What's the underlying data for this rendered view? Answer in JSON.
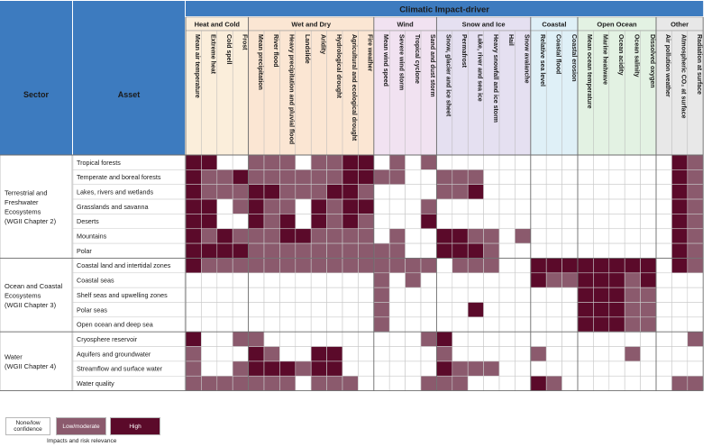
{
  "chart_data": {
    "type": "heatmap",
    "title": "Climatic Impact-driver",
    "sector_header": "Sector",
    "asset_header": "Asset",
    "groups": [
      {
        "name": "Heat and Cold",
        "color": "#fbeedb",
        "drivers": [
          "Mean air temperature",
          "Extreme heat",
          "Cold spell",
          "Frost"
        ]
      },
      {
        "name": "Wet and Dry",
        "color": "#fbe6d3",
        "drivers": [
          "Mean precipitation",
          "River flood",
          "Heavy precipitation and pluvial flood",
          "Landslide",
          "Aridity",
          "Hydrological drought",
          "Agricultural and ecological drought",
          "Fire weather"
        ]
      },
      {
        "name": "Wind",
        "color": "#f1e2f1",
        "drivers": [
          "Mean wind speed",
          "Severe wind storm",
          "Tropical cyclone",
          "Sand and dust storm"
        ]
      },
      {
        "name": "Snow and Ice",
        "color": "#e5e0f1",
        "drivers": [
          "Snow, glacier and ice sheet",
          "Permafrost",
          "Lake, river and sea ice",
          "Heavy snowfall and ice storm",
          "Hail",
          "Snow avalanche"
        ]
      },
      {
        "name": "Coastal",
        "color": "#dff0f7",
        "drivers": [
          "Relative sea level",
          "Coastal flood",
          "Coastal erosion"
        ]
      },
      {
        "name": "Open Ocean",
        "color": "#e3f2e3",
        "drivers": [
          "Mean ocean temperature",
          "Marine heatwave",
          "Ocean acidity",
          "Ocean salinity",
          "Dissolved oxygen"
        ]
      },
      {
        "name": "Other",
        "color": "#e8e8e8",
        "drivers": [
          "Air pollution weather",
          "Atmospheric CO₂ at surface",
          "Radiation at surface"
        ]
      }
    ],
    "sectors": [
      {
        "name": [
          "Terrestrial and",
          "Freshwater",
          "Ecosystems",
          "(WGII Chapter 2)"
        ],
        "assets": [
          "Tropical forests",
          "Temperate and boreal forests",
          "Lakes, rivers and wetlands",
          "Grasslands and savanna",
          "Deserts",
          "Mountains",
          "Polar"
        ]
      },
      {
        "name": [
          "Ocean and Coastal",
          "Ecosystems",
          "(WGII Chapter 3)"
        ],
        "assets": [
          "Coastal land and intertidal zones",
          "Coastal seas",
          "Shelf seas and upwelling zones",
          "Polar seas",
          "Open ocean and deep sea"
        ]
      },
      {
        "name": [
          "Water",
          "(WGII Chapter 4)"
        ],
        "assets": [
          "Cryosphere reservoir",
          "Aquifers and groundwater",
          "Streamflow and surface water",
          "Water quality"
        ]
      }
    ],
    "levels": {
      "0": "None/low confidence",
      "1": "Low/moderate",
      "2": "High"
    },
    "level_colors": [
      "#ffffff",
      "#8b5a6d",
      "#5b0a2a"
    ],
    "matrix": [
      [
        2,
        2,
        0,
        0,
        1,
        1,
        1,
        0,
        1,
        1,
        2,
        2,
        0,
        1,
        0,
        1,
        0,
        0,
        0,
        0,
        0,
        0,
        0,
        0,
        0,
        0,
        0,
        0,
        0,
        0,
        0,
        2,
        1
      ],
      [
        2,
        1,
        1,
        2,
        1,
        1,
        1,
        1,
        1,
        1,
        2,
        2,
        1,
        1,
        0,
        0,
        1,
        1,
        1,
        0,
        0,
        0,
        0,
        0,
        0,
        0,
        0,
        0,
        0,
        0,
        0,
        2,
        1
      ],
      [
        2,
        1,
        1,
        1,
        2,
        2,
        1,
        1,
        1,
        2,
        2,
        1,
        0,
        0,
        0,
        0,
        1,
        1,
        2,
        0,
        0,
        0,
        0,
        0,
        0,
        0,
        0,
        0,
        0,
        0,
        0,
        2,
        1
      ],
      [
        2,
        2,
        0,
        1,
        2,
        1,
        1,
        0,
        2,
        1,
        2,
        2,
        0,
        0,
        0,
        1,
        0,
        0,
        0,
        0,
        0,
        0,
        0,
        0,
        0,
        0,
        0,
        0,
        0,
        0,
        0,
        2,
        1
      ],
      [
        2,
        2,
        0,
        0,
        2,
        1,
        2,
        0,
        2,
        1,
        2,
        1,
        0,
        0,
        0,
        2,
        0,
        0,
        0,
        0,
        0,
        0,
        0,
        0,
        0,
        0,
        0,
        0,
        0,
        0,
        0,
        2,
        1
      ],
      [
        2,
        1,
        2,
        1,
        1,
        1,
        2,
        2,
        1,
        1,
        1,
        1,
        0,
        1,
        0,
        0,
        2,
        2,
        1,
        1,
        0,
        1,
        0,
        0,
        0,
        0,
        0,
        0,
        0,
        0,
        0,
        2,
        1
      ],
      [
        2,
        2,
        2,
        2,
        1,
        1,
        1,
        1,
        1,
        1,
        1,
        1,
        1,
        1,
        0,
        0,
        2,
        2,
        2,
        1,
        0,
        0,
        0,
        0,
        0,
        0,
        0,
        0,
        0,
        0,
        0,
        2,
        1
      ],
      [
        2,
        1,
        1,
        1,
        1,
        1,
        1,
        1,
        1,
        1,
        1,
        1,
        1,
        1,
        1,
        1,
        0,
        1,
        1,
        1,
        0,
        0,
        2,
        2,
        2,
        2,
        2,
        2,
        2,
        2,
        0,
        2,
        1
      ],
      [
        0,
        0,
        0,
        0,
        0,
        0,
        0,
        0,
        0,
        0,
        0,
        0,
        1,
        0,
        1,
        0,
        0,
        0,
        0,
        0,
        0,
        0,
        2,
        1,
        1,
        2,
        2,
        2,
        1,
        2,
        0,
        0,
        0
      ],
      [
        0,
        0,
        0,
        0,
        0,
        0,
        0,
        0,
        0,
        0,
        0,
        0,
        1,
        0,
        0,
        0,
        0,
        0,
        0,
        0,
        0,
        0,
        0,
        0,
        0,
        2,
        2,
        2,
        1,
        1,
        0,
        0,
        0
      ],
      [
        0,
        0,
        0,
        0,
        0,
        0,
        0,
        0,
        0,
        0,
        0,
        0,
        1,
        0,
        0,
        0,
        0,
        0,
        2,
        0,
        0,
        0,
        0,
        0,
        0,
        2,
        2,
        2,
        1,
        1,
        0,
        0,
        0
      ],
      [
        0,
        0,
        0,
        0,
        0,
        0,
        0,
        0,
        0,
        0,
        0,
        0,
        1,
        0,
        0,
        0,
        0,
        0,
        0,
        0,
        0,
        0,
        0,
        0,
        0,
        2,
        2,
        2,
        1,
        1,
        0,
        0,
        0
      ],
      [
        2,
        0,
        0,
        1,
        1,
        0,
        0,
        0,
        0,
        0,
        0,
        0,
        0,
        0,
        0,
        1,
        2,
        0,
        0,
        0,
        0,
        0,
        0,
        0,
        0,
        0,
        0,
        0,
        0,
        0,
        0,
        0,
        1
      ],
      [
        1,
        0,
        0,
        0,
        2,
        1,
        0,
        0,
        2,
        2,
        0,
        0,
        0,
        0,
        0,
        0,
        1,
        0,
        0,
        0,
        0,
        0,
        1,
        0,
        0,
        0,
        0,
        0,
        1,
        0,
        0,
        0,
        0
      ],
      [
        1,
        0,
        0,
        1,
        2,
        2,
        2,
        1,
        2,
        2,
        0,
        0,
        0,
        0,
        0,
        0,
        2,
        1,
        1,
        1,
        0,
        0,
        0,
        0,
        0,
        0,
        0,
        0,
        0,
        0,
        0,
        0,
        0
      ],
      [
        1,
        1,
        1,
        1,
        1,
        1,
        1,
        0,
        1,
        1,
        1,
        0,
        0,
        0,
        0,
        1,
        1,
        1,
        0,
        0,
        0,
        0,
        2,
        1,
        0,
        0,
        0,
        0,
        0,
        0,
        0,
        1,
        1
      ]
    ],
    "legend": {
      "none": "None/low confidence",
      "low": "Low/moderate",
      "high": "High",
      "caption": "Impacts and risk relevance"
    }
  }
}
